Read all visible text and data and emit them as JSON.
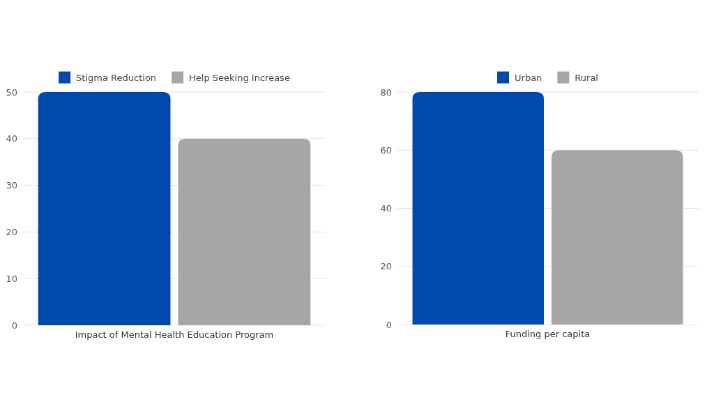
{
  "chart_data": [
    {
      "type": "bar",
      "categories": [
        "Impact of Mental Health Education Program"
      ],
      "series": [
        {
          "name": "Stigma Reduction",
          "color": "#004aad",
          "values": [
            50
          ]
        },
        {
          "name": "Help Seeking Increase",
          "color": "#a6a6a6",
          "values": [
            40
          ]
        }
      ],
      "ylim": [
        0,
        50
      ],
      "yticks": [
        0,
        10,
        20,
        30,
        40,
        50
      ],
      "grid": "y",
      "legend": "top"
    },
    {
      "type": "bar",
      "categories": [
        "Funding per capita"
      ],
      "series": [
        {
          "name": "Urban",
          "color": "#004aad",
          "values": [
            80
          ]
        },
        {
          "name": "Rural",
          "color": "#a6a6a6",
          "values": [
            60
          ]
        }
      ],
      "ylim": [
        0,
        80
      ],
      "yticks": [
        0,
        20,
        40,
        60,
        80
      ],
      "grid": "y",
      "legend": "top"
    }
  ]
}
